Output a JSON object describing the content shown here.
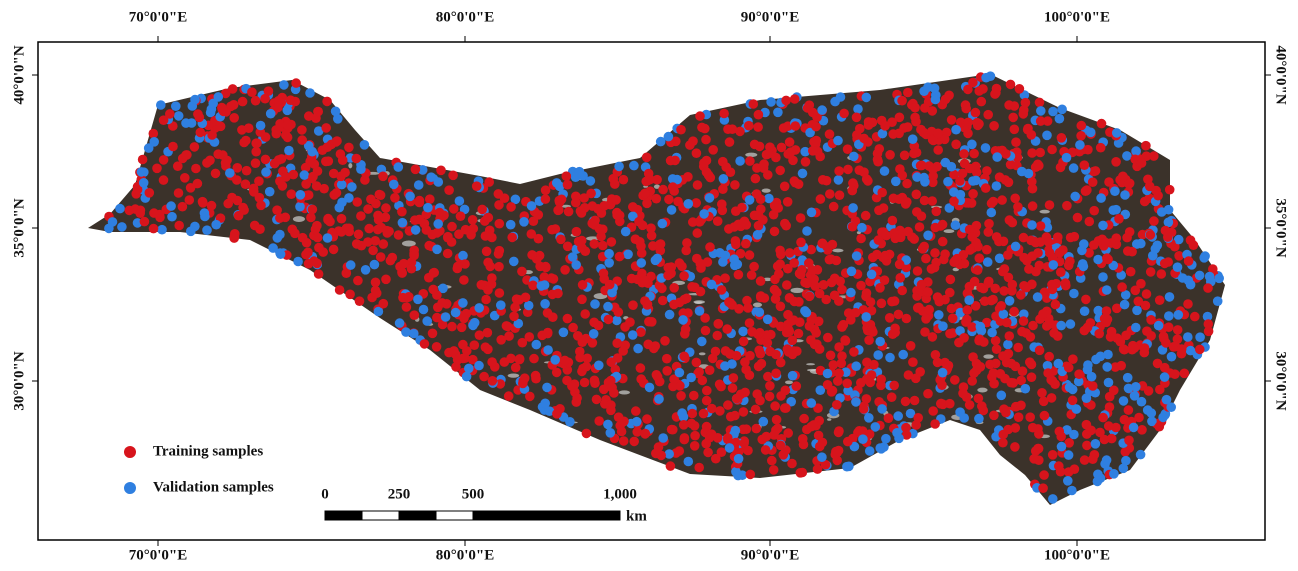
{
  "map": {
    "top_labels": [
      "70°0'0\"E",
      "80°0'0\"E",
      "90°0'0\"E",
      "100°0'0\"E"
    ],
    "bottom_labels": [
      "70°0'0\"E",
      "80°0'0\"E",
      "90°0'0\"E",
      "100°0'0\"E"
    ],
    "left_labels": [
      "40°0'0\"N",
      "35°0'0\"N",
      "30°0'0\"N"
    ],
    "right_labels": [
      "40°0'0\"N",
      "35°0'0\"N",
      "30°0'0\"N"
    ],
    "legend": [
      {
        "label": "Training samples",
        "color": "#d7141c"
      },
      {
        "label": "Validation samples",
        "color": "#2f7fe0"
      }
    ],
    "scale_bar": {
      "labels": [
        "0",
        "250",
        "500",
        "1,000"
      ],
      "unit": "km"
    }
  }
}
